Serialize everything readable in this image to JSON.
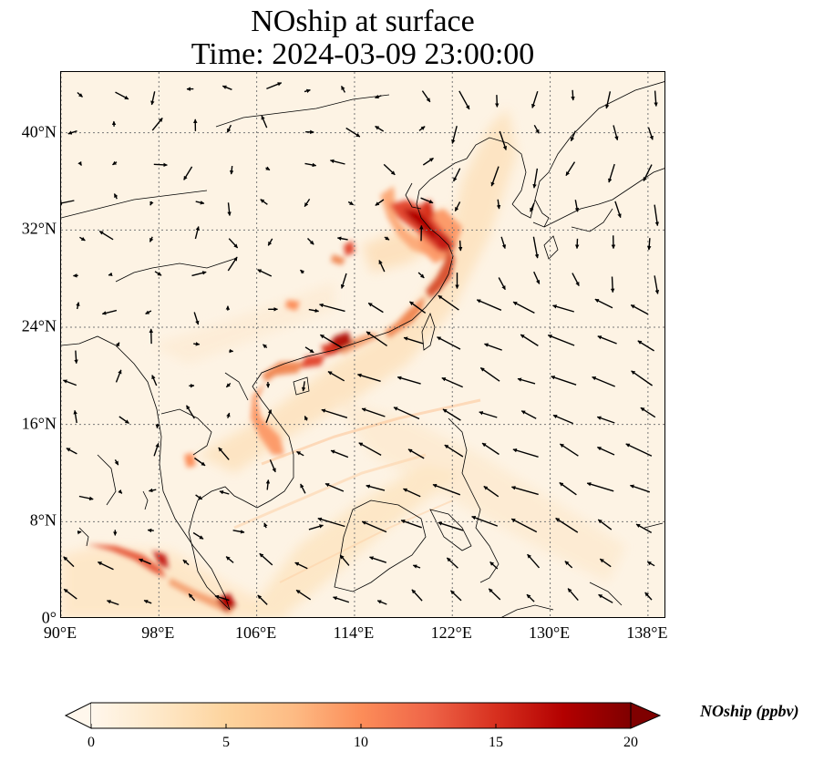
{
  "title": {
    "line1": "NOship at surface",
    "line2": "Time: 2024-03-09 23:00:00"
  },
  "map": {
    "lon_range": [
      90,
      139.5
    ],
    "lat_range": [
      0,
      45
    ],
    "lat_ticks": [
      {
        "value": 40,
        "label": "40°N"
      },
      {
        "value": 32,
        "label": "32°N"
      },
      {
        "value": 24,
        "label": "24°N"
      },
      {
        "value": 16,
        "label": "16°N"
      },
      {
        "value": 8,
        "label": "8°N"
      },
      {
        "value": 0,
        "label": "0°"
      }
    ],
    "lon_ticks": [
      {
        "value": 90,
        "label": "90°E"
      },
      {
        "value": 98,
        "label": "98°E"
      },
      {
        "value": 106,
        "label": "106°E"
      },
      {
        "value": 114,
        "label": "114°E"
      },
      {
        "value": 122,
        "label": "122°E"
      },
      {
        "value": 130,
        "label": "130°E"
      },
      {
        "value": 138,
        "label": "138°E"
      }
    ],
    "gridlines": true
  },
  "colorbar": {
    "label": "NOship (ppbv)",
    "min": 0,
    "max": 20,
    "ticks": [
      {
        "value": 0,
        "label": "0"
      },
      {
        "value": 5,
        "label": "5"
      },
      {
        "value": 10,
        "label": "10"
      },
      {
        "value": 15,
        "label": "15"
      },
      {
        "value": 20,
        "label": "20"
      }
    ],
    "colormap": [
      "#fff7ec",
      "#fee8c8",
      "#fdd49e",
      "#fdbb84",
      "#fc8d59",
      "#ef6548",
      "#d7301f",
      "#b30000",
      "#7f0000"
    ],
    "extend": "both"
  }
}
